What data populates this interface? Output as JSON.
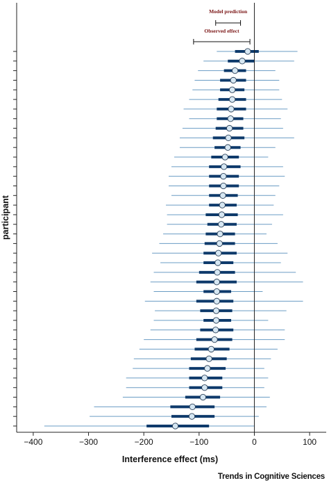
{
  "chart_data": {
    "type": "forest",
    "xlabel": "Interference effect (ms)",
    "ylabel": "participant",
    "xlim": [
      -430,
      130
    ],
    "xticks": [
      -400,
      -300,
      -200,
      -100,
      0,
      100
    ],
    "xtick_labels": [
      "−400",
      "−300",
      "−200",
      "−100",
      "0",
      "100"
    ],
    "reference_line": 0,
    "grid": false,
    "legend": {
      "items": [
        {
          "label": "Model prediction",
          "range": [
            -70,
            -25
          ]
        },
        {
          "label": "Observed effect",
          "range": [
            -110,
            -8
          ]
        }
      ],
      "placement": "top-center"
    },
    "colors": {
      "thick": "#0e3a6b",
      "thin": "#6a9cc4",
      "point_fill": "#d6e7f3",
      "legend_text": "#7a1515",
      "axis": "#222222"
    },
    "participants": [
      {
        "mean": -12,
        "inner": [
          -35,
          8
        ],
        "outer": [
          -68,
          78
        ]
      },
      {
        "mean": -22,
        "inner": [
          -48,
          0
        ],
        "outer": [
          -92,
          72
        ]
      },
      {
        "mean": -35,
        "inner": [
          -55,
          -15
        ],
        "outer": [
          -102,
          38
        ]
      },
      {
        "mean": -38,
        "inner": [
          -62,
          -15
        ],
        "outer": [
          -108,
          45
        ]
      },
      {
        "mean": -40,
        "inner": [
          -62,
          -18
        ],
        "outer": [
          -112,
          45
        ]
      },
      {
        "mean": -40,
        "inner": [
          -65,
          -15
        ],
        "outer": [
          -118,
          50
        ]
      },
      {
        "mean": -42,
        "inner": [
          -68,
          -15
        ],
        "outer": [
          -128,
          60
        ]
      },
      {
        "mean": -43,
        "inner": [
          -68,
          -20
        ],
        "outer": [
          -118,
          48
        ]
      },
      {
        "mean": -45,
        "inner": [
          -70,
          -20
        ],
        "outer": [
          -130,
          52
        ]
      },
      {
        "mean": -47,
        "inner": [
          -75,
          -18
        ],
        "outer": [
          -135,
          72
        ]
      },
      {
        "mean": -48,
        "inner": [
          -72,
          -25
        ],
        "outer": [
          -135,
          38
        ]
      },
      {
        "mean": -53,
        "inner": [
          -78,
          -28
        ],
        "outer": [
          -145,
          25
        ]
      },
      {
        "mean": -55,
        "inner": [
          -82,
          -25
        ],
        "outer": [
          -150,
          52
        ]
      },
      {
        "mean": -56,
        "inner": [
          -82,
          -28
        ],
        "outer": [
          -155,
          55
        ]
      },
      {
        "mean": -56,
        "inner": [
          -82,
          -28
        ],
        "outer": [
          -155,
          45
        ]
      },
      {
        "mean": -57,
        "inner": [
          -82,
          -30
        ],
        "outer": [
          -150,
          38
        ]
      },
      {
        "mean": -58,
        "inner": [
          -82,
          -32
        ],
        "outer": [
          -160,
          35
        ]
      },
      {
        "mean": -59,
        "inner": [
          -88,
          -30
        ],
        "outer": [
          -158,
          52
        ]
      },
      {
        "mean": -60,
        "inner": [
          -85,
          -32
        ],
        "outer": [
          -158,
          32
        ]
      },
      {
        "mean": -62,
        "inner": [
          -88,
          -35
        ],
        "outer": [
          -165,
          22
        ]
      },
      {
        "mean": -63,
        "inner": [
          -90,
          -35
        ],
        "outer": [
          -172,
          42
        ]
      },
      {
        "mean": -65,
        "inner": [
          -92,
          -32
        ],
        "outer": [
          -185,
          60
        ]
      },
      {
        "mean": -66,
        "inner": [
          -92,
          -38
        ],
        "outer": [
          -170,
          48
        ]
      },
      {
        "mean": -67,
        "inner": [
          -100,
          -35
        ],
        "outer": [
          -182,
          75
        ]
      },
      {
        "mean": -68,
        "inner": [
          -105,
          -32
        ],
        "outer": [
          -188,
          88
        ]
      },
      {
        "mean": -68,
        "inner": [
          -92,
          -42
        ],
        "outer": [
          -182,
          15
        ]
      },
      {
        "mean": -68,
        "inner": [
          -105,
          -38
        ],
        "outer": [
          -198,
          88
        ]
      },
      {
        "mean": -69,
        "inner": [
          -98,
          -40
        ],
        "outer": [
          -180,
          58
        ]
      },
      {
        "mean": -69,
        "inner": [
          -92,
          -42
        ],
        "outer": [
          -182,
          25
        ]
      },
      {
        "mean": -70,
        "inner": [
          -98,
          -38
        ],
        "outer": [
          -188,
          55
        ]
      },
      {
        "mean": -72,
        "inner": [
          -105,
          -40
        ],
        "outer": [
          -200,
          55
        ]
      },
      {
        "mean": -78,
        "inner": [
          -108,
          -45
        ],
        "outer": [
          -208,
          42
        ]
      },
      {
        "mean": -82,
        "inner": [
          -115,
          -50
        ],
        "outer": [
          -218,
          30
        ]
      },
      {
        "mean": -85,
        "inner": [
          -118,
          -52
        ],
        "outer": [
          -220,
          18
        ]
      },
      {
        "mean": -90,
        "inner": [
          -118,
          -58
        ],
        "outer": [
          -232,
          25
        ]
      },
      {
        "mean": -90,
        "inner": [
          -118,
          -58
        ],
        "outer": [
          -232,
          18
        ]
      },
      {
        "mean": -93,
        "inner": [
          -125,
          -62
        ],
        "outer": [
          -238,
          28
        ]
      },
      {
        "mean": -112,
        "inner": [
          -152,
          -72
        ],
        "outer": [
          -290,
          22
        ]
      },
      {
        "mean": -113,
        "inner": [
          -150,
          -72
        ],
        "outer": [
          -298,
          8
        ]
      },
      {
        "mean": -143,
        "inner": [
          -195,
          -82
        ],
        "outer": [
          -380,
          0
        ]
      }
    ]
  },
  "footer": {
    "journal": "Trends in Cognitive Sciences"
  }
}
